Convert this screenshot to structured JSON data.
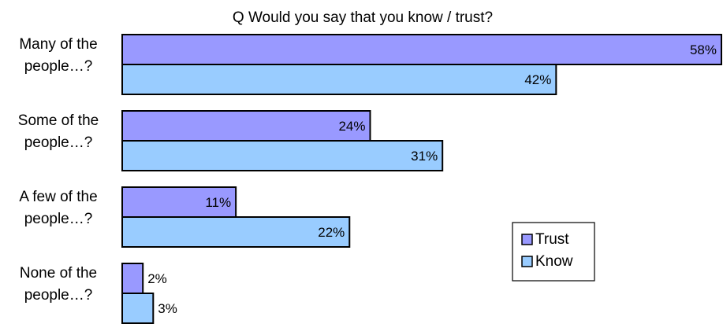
{
  "chart_data": {
    "type": "bar",
    "orientation": "horizontal",
    "title": "Q Would you say that you know / trust?",
    "categories": [
      [
        "Many of the",
        "people…?"
      ],
      [
        "Some of the",
        "people…?"
      ],
      [
        "A few of the",
        "people…?"
      ],
      [
        "None of the",
        "people…?"
      ]
    ],
    "series": [
      {
        "name": "Trust",
        "values": [
          58,
          24,
          11,
          2
        ],
        "color": "#9999ff"
      },
      {
        "name": "Know",
        "values": [
          42,
          31,
          22,
          3
        ],
        "color": "#99ccff"
      }
    ],
    "value_suffix": "%",
    "xlim": [
      0,
      58
    ],
    "grid": false,
    "legend_position": "right-middle"
  }
}
